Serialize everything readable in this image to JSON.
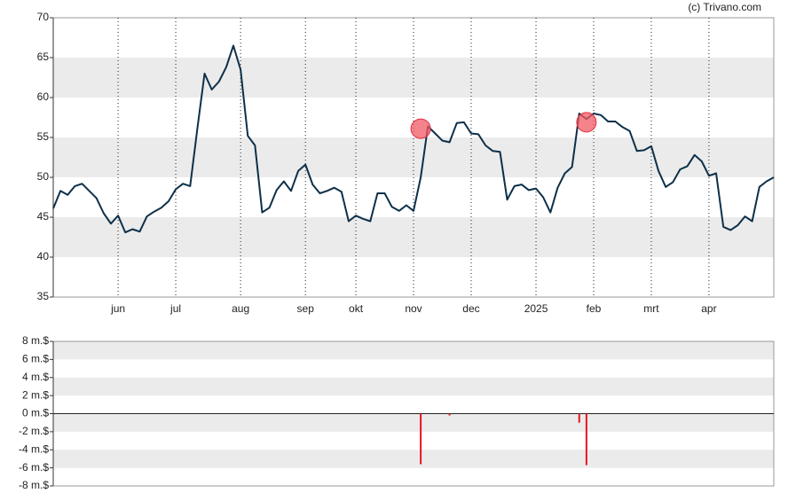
{
  "chart_data": [
    {
      "type": "line",
      "credit": "(c) Trivano.com",
      "color": "#0d3049",
      "ylim": [
        35,
        70
      ],
      "yticks": [
        35,
        40,
        45,
        50,
        55,
        60,
        65,
        70
      ],
      "categories": [
        null,
        null,
        null,
        null,
        null,
        null,
        null,
        null,
        null,
        "jun",
        null,
        null,
        null,
        null,
        null,
        null,
        null,
        "jul",
        null,
        null,
        null,
        null,
        null,
        null,
        null,
        null,
        "aug",
        null,
        null,
        null,
        null,
        null,
        null,
        null,
        null,
        "sep",
        null,
        null,
        null,
        null,
        null,
        null,
        "okt",
        null,
        null,
        null,
        null,
        null,
        null,
        null,
        "nov",
        null,
        null,
        null,
        null,
        null,
        null,
        null,
        "dec",
        null,
        null,
        null,
        null,
        null,
        null,
        null,
        null,
        "2025",
        null,
        null,
        null,
        null,
        null,
        null,
        null,
        "feb",
        null,
        null,
        null,
        null,
        null,
        null,
        null,
        "mrt",
        null,
        null,
        null,
        null,
        null,
        null,
        null,
        "apr",
        null,
        null,
        null,
        null,
        null,
        null,
        null,
        null,
        null
      ],
      "values": [
        46.1,
        48.3,
        47.8,
        48.9,
        49.2,
        48.3,
        47.4,
        45.5,
        44.2,
        45.2,
        43.1,
        43.5,
        43.2,
        45.1,
        45.7,
        46.2,
        47,
        48.5,
        49.2,
        48.9,
        56.1,
        63,
        61,
        62,
        63.8,
        66.5,
        63.5,
        55.2,
        54,
        45.6,
        46.2,
        48.4,
        49.5,
        48.3,
        50.8,
        51.6,
        49.1,
        48,
        48.3,
        48.7,
        48.2,
        44.5,
        45.2,
        44.8,
        44.5,
        48,
        48,
        46.3,
        45.8,
        46.5,
        45.8,
        50,
        56.4,
        55.5,
        54.6,
        54.4,
        56.8,
        56.9,
        55.5,
        55.4,
        54,
        53.3,
        53.2,
        47.2,
        48.9,
        49.1,
        48.4,
        48.6,
        47.5,
        45.6,
        48.7,
        50.5,
        51.3,
        58,
        57.3,
        58,
        57.8,
        57,
        57,
        56.3,
        55.8,
        53.3,
        53.4,
        53.9,
        50.8,
        48.8,
        49.4,
        51,
        51.4,
        52.8,
        52,
        50.2,
        50.5,
        43.8,
        43.4,
        44,
        45.1,
        44.5,
        48.8,
        49.5,
        50
      ],
      "markers": {
        "color": "#f05a64",
        "values": [
          null,
          null,
          null,
          null,
          null,
          null,
          null,
          null,
          null,
          null,
          null,
          null,
          null,
          null,
          null,
          null,
          null,
          null,
          null,
          null,
          null,
          null,
          null,
          null,
          null,
          null,
          null,
          null,
          null,
          null,
          null,
          null,
          null,
          null,
          null,
          null,
          null,
          null,
          null,
          null,
          null,
          null,
          null,
          null,
          null,
          null,
          null,
          null,
          null,
          null,
          null,
          56.1,
          null,
          null,
          null,
          null,
          null,
          null,
          null,
          null,
          null,
          null,
          null,
          null,
          null,
          null,
          null,
          null,
          null,
          null,
          null,
          null,
          null,
          null,
          56.9,
          null,
          null,
          null,
          null,
          null,
          null,
          null,
          null,
          null,
          null,
          null,
          null,
          null,
          null,
          null,
          null,
          null,
          null,
          null,
          null,
          null,
          null,
          null,
          null,
          null,
          null
        ]
      }
    },
    {
      "type": "bar",
      "color": "#e8141e",
      "ylim": [
        -8,
        8
      ],
      "yticks": [
        {
          "value": -8,
          "label": "-8 m.$"
        },
        {
          "value": -6,
          "label": "-6 m.$"
        },
        {
          "value": -4,
          "label": "-4 m.$"
        },
        {
          "value": -2,
          "label": "-2 m.$"
        },
        {
          "value": 0,
          "label": "0 m.$"
        },
        {
          "value": 2,
          "label": "2 m.$"
        },
        {
          "value": 4,
          "label": "4 m.$"
        },
        {
          "value": 6,
          "label": "6 m.$"
        },
        {
          "value": 8,
          "label": "8 m.$"
        }
      ],
      "values": [
        null,
        null,
        null,
        null,
        null,
        null,
        null,
        null,
        null,
        null,
        null,
        null,
        null,
        null,
        null,
        null,
        null,
        null,
        null,
        null,
        null,
        null,
        null,
        null,
        null,
        null,
        null,
        null,
        null,
        null,
        null,
        null,
        null,
        null,
        null,
        null,
        null,
        null,
        null,
        null,
        null,
        null,
        null,
        null,
        null,
        null,
        null,
        null,
        null,
        null,
        null,
        -5.6,
        null,
        null,
        null,
        -0.2,
        null,
        null,
        null,
        null,
        null,
        null,
        null,
        null,
        null,
        null,
        null,
        null,
        null,
        null,
        null,
        null,
        null,
        -1,
        -5.7,
        null,
        null,
        null,
        null,
        null,
        null,
        null,
        null,
        null,
        null,
        null,
        null,
        null,
        null,
        null,
        null,
        null,
        null,
        null,
        null,
        null,
        null,
        null,
        null,
        null,
        null
      ]
    }
  ]
}
